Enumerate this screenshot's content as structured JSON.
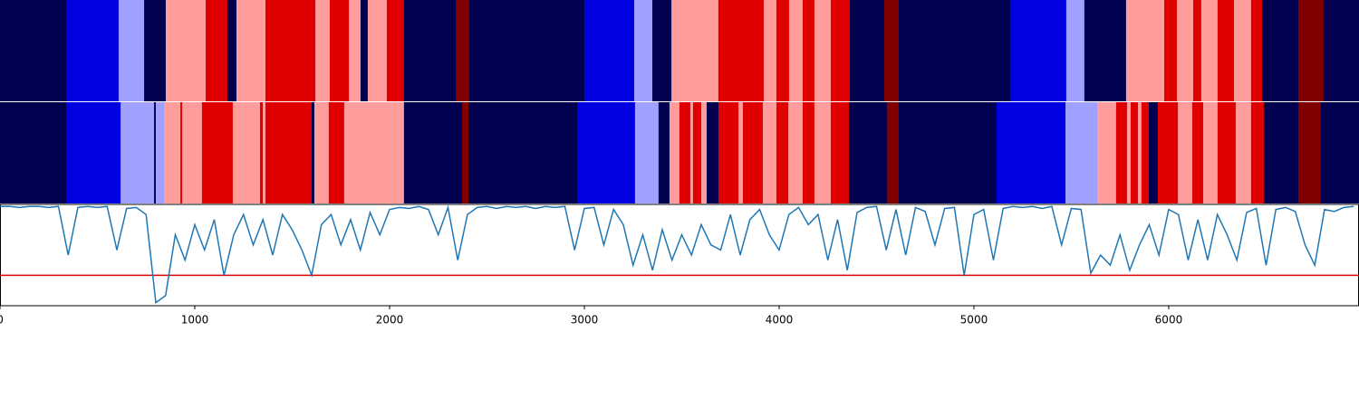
{
  "chart_data": {
    "type": "segments",
    "xlim": [
      0,
      6977
    ],
    "xticks": [
      0,
      1000,
      2000,
      3000,
      4000,
      5000,
      6000
    ],
    "state_colors": [
      "#00004f",
      "#0000e0",
      "#a0a0ff",
      "#ff9c9c",
      "#e00000",
      "#800000"
    ],
    "tracks": [
      {
        "starts": [
          0,
          340,
          609,
          740,
          851,
          1056,
          1167,
          1214,
          1363,
          1619,
          1693,
          1791,
          1851,
          1888,
          1986,
          2074,
          2340,
          2409,
          3000,
          3256,
          3349,
          3447,
          3688,
          3921,
          3986,
          4051,
          4121,
          4181,
          4265,
          4363,
          4540,
          4614,
          5186,
          5474,
          5567,
          5781,
          5977,
          6042,
          6126,
          6167,
          6251,
          6335,
          6423,
          6479,
          6665,
          6795
        ],
        "states": [
          0,
          1,
          2,
          0,
          3,
          4,
          0,
          3,
          4,
          3,
          4,
          3,
          0,
          3,
          4,
          0,
          5,
          0,
          1,
          2,
          0,
          3,
          4,
          3,
          4,
          3,
          4,
          3,
          4,
          0,
          5,
          0,
          1,
          2,
          0,
          3,
          4,
          3,
          4,
          3,
          4,
          3,
          4,
          0,
          5,
          0
        ]
      },
      {
        "starts": [
          0,
          340,
          619,
          791,
          800,
          842,
          926,
          935,
          1037,
          1195,
          1335,
          1349,
          1363,
          1600,
          1614,
          1688,
          1767,
          2074,
          2372,
          2405,
          2963,
          3260,
          3381,
          3437,
          3488,
          3544,
          3558,
          3600,
          3628,
          3688,
          3791,
          3814,
          3916,
          3986,
          4047,
          4121,
          4181,
          4265,
          4358,
          4553,
          4614,
          5116,
          5470,
          5633,
          5730,
          5786,
          5805,
          5842,
          5860,
          5898,
          5944,
          6047,
          6121,
          6177,
          6251,
          6344,
          6423,
          6488,
          6665,
          6781
        ],
        "states": [
          0,
          1,
          2,
          0,
          2,
          3,
          4,
          3,
          4,
          3,
          4,
          3,
          4,
          0,
          3,
          4,
          3,
          0,
          5,
          0,
          1,
          2,
          0,
          3,
          4,
          3,
          4,
          3,
          0,
          4,
          3,
          4,
          3,
          4,
          3,
          4,
          3,
          4,
          0,
          5,
          0,
          1,
          2,
          3,
          4,
          3,
          4,
          3,
          4,
          0,
          4,
          3,
          4,
          3,
          4,
          3,
          4,
          0,
          5,
          0
        ]
      }
    ],
    "line": {
      "color": "#1f77b4",
      "ylim": [
        0,
        1
      ],
      "threshold": 0.3,
      "threshold_color": "#e00000",
      "x": [
        0,
        50,
        100,
        150,
        200,
        250,
        300,
        350,
        400,
        450,
        500,
        550,
        600,
        650,
        700,
        750,
        800,
        850,
        900,
        950,
        1000,
        1050,
        1100,
        1150,
        1200,
        1250,
        1300,
        1350,
        1400,
        1450,
        1500,
        1550,
        1600,
        1650,
        1700,
        1750,
        1800,
        1850,
        1900,
        1950,
        2000,
        2050,
        2100,
        2150,
        2200,
        2250,
        2300,
        2350,
        2400,
        2450,
        2500,
        2550,
        2600,
        2650,
        2700,
        2750,
        2800,
        2850,
        2900,
        2950,
        3000,
        3050,
        3100,
        3150,
        3200,
        3250,
        3300,
        3350,
        3400,
        3450,
        3500,
        3550,
        3600,
        3650,
        3700,
        3750,
        3800,
        3850,
        3900,
        3950,
        4000,
        4050,
        4100,
        4150,
        4200,
        4250,
        4300,
        4350,
        4400,
        4450,
        4500,
        4550,
        4600,
        4650,
        4700,
        4750,
        4800,
        4850,
        4900,
        4950,
        5000,
        5050,
        5100,
        5150,
        5200,
        5250,
        5300,
        5350,
        5400,
        5450,
        5500,
        5550,
        5600,
        5650,
        5700,
        5750,
        5800,
        5850,
        5900,
        5950,
        6000,
        6050,
        6100,
        6150,
        6200,
        6250,
        6300,
        6350,
        6400,
        6450,
        6500,
        6550,
        6600,
        6650,
        6700,
        6750,
        6800,
        6850,
        6900,
        6950
      ],
      "values": [
        0.98,
        0.98,
        0.97,
        0.98,
        0.98,
        0.97,
        0.98,
        0.5,
        0.97,
        0.98,
        0.97,
        0.98,
        0.55,
        0.96,
        0.97,
        0.9,
        0.03,
        0.1,
        0.7,
        0.45,
        0.8,
        0.55,
        0.85,
        0.3,
        0.7,
        0.9,
        0.6,
        0.85,
        0.5,
        0.9,
        0.75,
        0.55,
        0.3,
        0.8,
        0.9,
        0.6,
        0.85,
        0.55,
        0.92,
        0.7,
        0.95,
        0.97,
        0.96,
        0.98,
        0.95,
        0.7,
        0.97,
        0.45,
        0.9,
        0.97,
        0.98,
        0.96,
        0.98,
        0.97,
        0.98,
        0.96,
        0.98,
        0.97,
        0.98,
        0.55,
        0.96,
        0.97,
        0.6,
        0.95,
        0.8,
        0.4,
        0.7,
        0.35,
        0.75,
        0.45,
        0.7,
        0.5,
        0.8,
        0.6,
        0.55,
        0.9,
        0.5,
        0.85,
        0.95,
        0.7,
        0.55,
        0.9,
        0.97,
        0.8,
        0.9,
        0.45,
        0.85,
        0.35,
        0.92,
        0.97,
        0.98,
        0.55,
        0.95,
        0.5,
        0.97,
        0.93,
        0.6,
        0.96,
        0.97,
        0.3,
        0.9,
        0.95,
        0.45,
        0.96,
        0.98,
        0.97,
        0.98,
        0.96,
        0.98,
        0.6,
        0.96,
        0.95,
        0.32,
        0.5,
        0.4,
        0.7,
        0.35,
        0.6,
        0.8,
        0.5,
        0.95,
        0.9,
        0.45,
        0.85,
        0.45,
        0.9,
        0.7,
        0.45,
        0.92,
        0.96,
        0.4,
        0.95,
        0.97,
        0.93,
        0.6,
        0.4,
        0.95,
        0.93,
        0.97,
        0.98
      ]
    }
  }
}
